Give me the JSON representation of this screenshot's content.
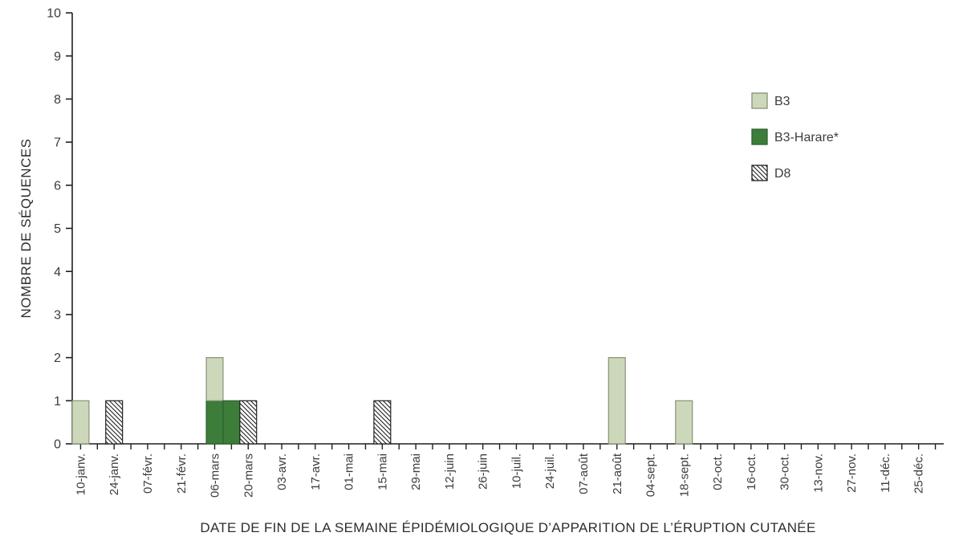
{
  "chart_data": {
    "type": "bar",
    "stacked": true,
    "title": "",
    "xlabel": "DATE DE FIN DE LA SEMAINE ÉPIDÉMIOLOGIQUE D’APPARITION DE L’ÉRUPTION CUTANÉE",
    "ylabel": "NOMBRE DE SÉQUENCES",
    "ylim": [
      0,
      10
    ],
    "y_ticks": [
      0,
      1,
      2,
      3,
      4,
      5,
      6,
      7,
      8,
      9,
      10
    ],
    "grid": false,
    "x_axis": {
      "total_weeks": 52,
      "label_every_n_ticks": 2,
      "tick_labels": [
        "10-janv.",
        "24-janv.",
        "07-févr.",
        "21-févr.",
        "06-mars",
        "20-mars",
        "03-avr.",
        "17-avr.",
        "01-mai",
        "15-mai",
        "29-mai",
        "12-juin",
        "26-juin",
        "10-juil.",
        "24-juil.",
        "07-août",
        "21-août",
        "04-sept.",
        "18-sept.",
        "02-oct.",
        "16-oct.",
        "30-oct.",
        "13-nov.",
        "27-nov.",
        "11-déc.",
        "25-déc."
      ]
    },
    "legend": {
      "position": "upper-right",
      "entries": [
        {
          "label": "B3",
          "fill": "#cdd8ba",
          "stroke": "#85927a",
          "pattern": "solid"
        },
        {
          "label": "B3-Harare*",
          "fill": "#3c7d3a",
          "stroke": "#2e6130",
          "pattern": "solid"
        },
        {
          "label": "D8",
          "fill": "#ffffff",
          "stroke": "#1f1f1f",
          "pattern": "diagonal-hatch"
        }
      ]
    },
    "bars": [
      {
        "week_index": 0,
        "label": "10-janv.",
        "segments": [
          {
            "series": "B3",
            "value": 1
          }
        ]
      },
      {
        "week_index": 2,
        "label": "24-janv.",
        "segments": [
          {
            "series": "D8",
            "value": 1
          }
        ]
      },
      {
        "week_index": 8,
        "label": "06-mars",
        "segments": [
          {
            "series": "B3-Harare*",
            "value": 1
          },
          {
            "series": "B3",
            "value": 1
          }
        ]
      },
      {
        "week_index": 9,
        "label": "",
        "segments": [
          {
            "series": "B3-Harare*",
            "value": 1
          }
        ]
      },
      {
        "week_index": 10,
        "label": "20-mars",
        "segments": [
          {
            "series": "D8",
            "value": 1
          }
        ]
      },
      {
        "week_index": 18,
        "label": "15-mai",
        "segments": [
          {
            "series": "D8",
            "value": 1
          }
        ]
      },
      {
        "week_index": 32,
        "label": "21-août",
        "segments": [
          {
            "series": "B3",
            "value": 2
          }
        ]
      },
      {
        "week_index": 36,
        "label": "18-sept.",
        "segments": [
          {
            "series": "B3",
            "value": 1
          }
        ]
      }
    ],
    "colors": {
      "axis": "#1f1f1f",
      "text": "#3c3c3c",
      "background": "#ffffff"
    }
  }
}
